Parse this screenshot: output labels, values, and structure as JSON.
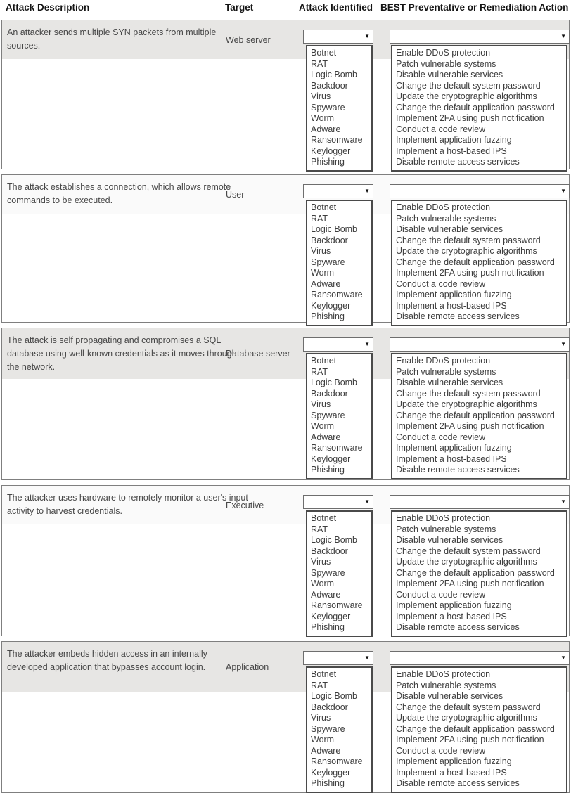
{
  "header": {
    "columns": [
      "Attack Description",
      "Target",
      "Attack Identified",
      "BEST Preventative or Remediation Action"
    ]
  },
  "attack_options": [
    "Botnet",
    "RAT",
    "Logic Bomb",
    "Backdoor",
    "Virus",
    "Spyware",
    "Worm",
    "Adware",
    "Ransomware",
    "Keylogger",
    "Phishing"
  ],
  "remediation_options": [
    "Enable DDoS protection",
    "Patch vulnerable systems",
    "Disable vulnerable services",
    "Change the default system password",
    "Update the cryptographic algorithms",
    "Change the default application password",
    "Implement 2FA using push notification",
    "Conduct a code review",
    "Implement application fuzzing",
    "Implement a host-based IPS",
    "Disable remote access services"
  ],
  "select_arrow_icon": "▼",
  "rows": [
    {
      "description": "An attacker sends multiple SYN packets from multiple sources.",
      "target": "Web server",
      "attack_selected": "",
      "remediation_selected": ""
    },
    {
      "description": "The attack establishes a connection, which allows remote commands to be executed.",
      "target": "User",
      "attack_selected": "",
      "remediation_selected": ""
    },
    {
      "description": "The attack is self propagating and compromises a SQL database using well-known credentials as it moves through the network.",
      "target": "Database server",
      "attack_selected": "",
      "remediation_selected": ""
    },
    {
      "description": "The attacker uses hardware to remotely monitor a user's input activity to harvest credentials.",
      "target": "Executive",
      "attack_selected": "",
      "remediation_selected": ""
    },
    {
      "description": "The attacker embeds hidden access in an internally developed application that bypasses account login.",
      "target": "Application",
      "attack_selected": "",
      "remediation_selected": ""
    }
  ],
  "colors": {
    "band_gray": "#e7e6e4",
    "band_light": "#fafafa",
    "row_border": "#7f7f7f",
    "listbox_border": "#4a4a4a",
    "text": "#3d3d3d",
    "header_text": "#141414"
  }
}
